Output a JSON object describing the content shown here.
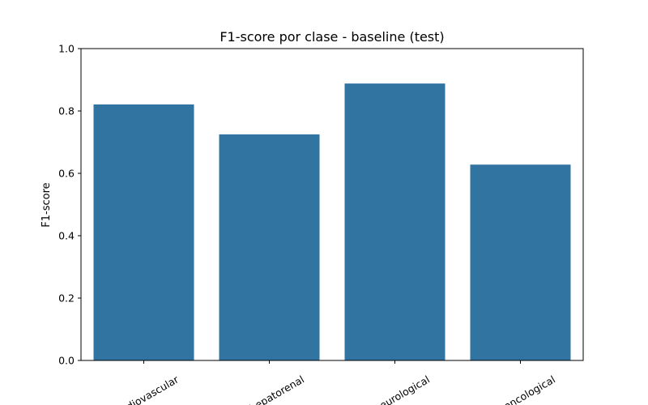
{
  "chart_data": {
    "type": "bar",
    "title": "F1-score por clase - baseline (test)",
    "xlabel": "",
    "ylabel": "F1-score",
    "categories": [
      "cardiovascular",
      "hepatorenal",
      "neurological",
      "oncological"
    ],
    "values": [
      0.821,
      0.725,
      0.888,
      0.628
    ],
    "ylim": [
      0,
      1.0
    ],
    "yticks": [
      "0.0",
      "0.2",
      "0.4",
      "0.6",
      "0.8",
      "1.0"
    ],
    "grid": false,
    "legend": "none",
    "bar_color": "#3274a1"
  }
}
